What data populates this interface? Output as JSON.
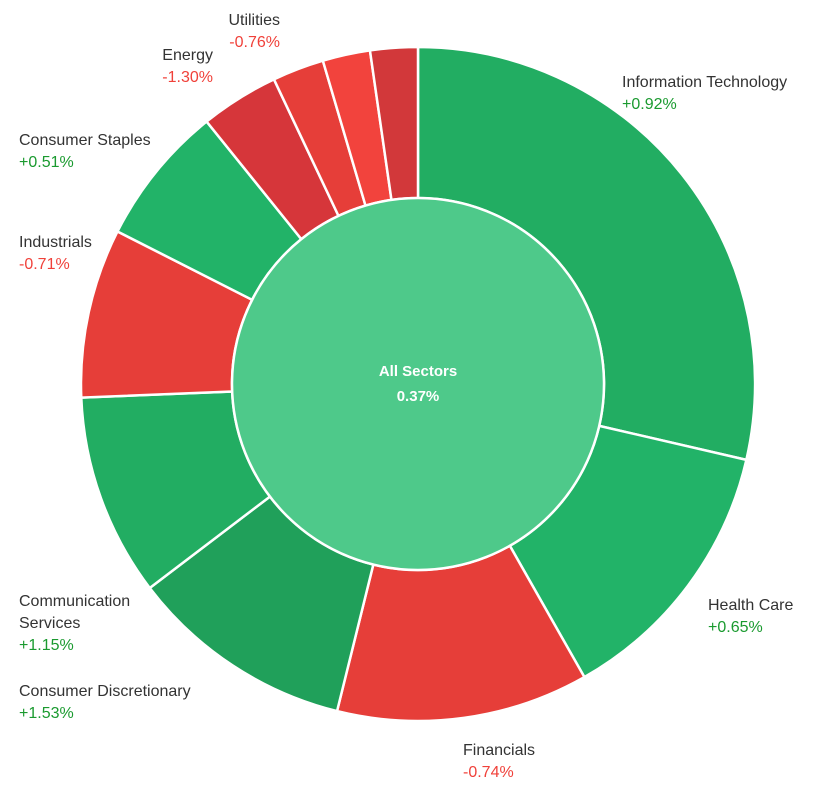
{
  "chart_data": {
    "type": "pie",
    "subtype": "donut",
    "center": {
      "title": "All Sectors",
      "value": "0.37%",
      "color": "#4ec98a"
    },
    "slices": [
      {
        "name": "Information Technology",
        "name_lines": [
          "Information Technology"
        ],
        "change": "+0.92%",
        "share": 28.9,
        "color": "#22ad62"
      },
      {
        "name": "Health Care",
        "name_lines": [
          "Health Care"
        ],
        "change": "+0.65%",
        "share": 13.3,
        "color": "#22b368"
      },
      {
        "name": "Financials",
        "name_lines": [
          "Financials"
        ],
        "change": "-0.74%",
        "share": 12.2,
        "color": "#e63e39"
      },
      {
        "name": "Consumer Discretionary",
        "name_lines": [
          "Consumer Discretionary"
        ],
        "change": "+1.53%",
        "share": 10.9,
        "color": "#20a05a"
      },
      {
        "name": "Communication Services",
        "name_lines": [
          "Communication",
          "Services"
        ],
        "change": "+1.15%",
        "share": 9.8,
        "color": "#22ad62"
      },
      {
        "name": "Industrials",
        "name_lines": [
          "Industrials"
        ],
        "change": "-0.71%",
        "share": 8.2,
        "color": "#e63e39"
      },
      {
        "name": "Consumer Staples",
        "name_lines": [
          "Consumer Staples"
        ],
        "change": "+0.51%",
        "share": 6.8,
        "color": "#22b368"
      },
      {
        "name": "Energy",
        "name_lines": [
          "Energy"
        ],
        "change": "-1.30%",
        "share": 3.8,
        "color": "#d6363a"
      },
      {
        "name": "Utilities",
        "name_lines": [
          "Utilities"
        ],
        "change": "-0.76%",
        "share": 2.5,
        "color": "#e63e39"
      },
      {
        "name": "",
        "name_lines": [],
        "change": "",
        "share": 2.3,
        "color": "#f2433d"
      },
      {
        "name": "",
        "name_lines": [],
        "change": "",
        "share": 2.3,
        "color": "#d2383a"
      }
    ],
    "colors": {
      "positive_text": "#1a9a2f",
      "negative_text": "#f0413a",
      "label_text": "#333333"
    }
  }
}
